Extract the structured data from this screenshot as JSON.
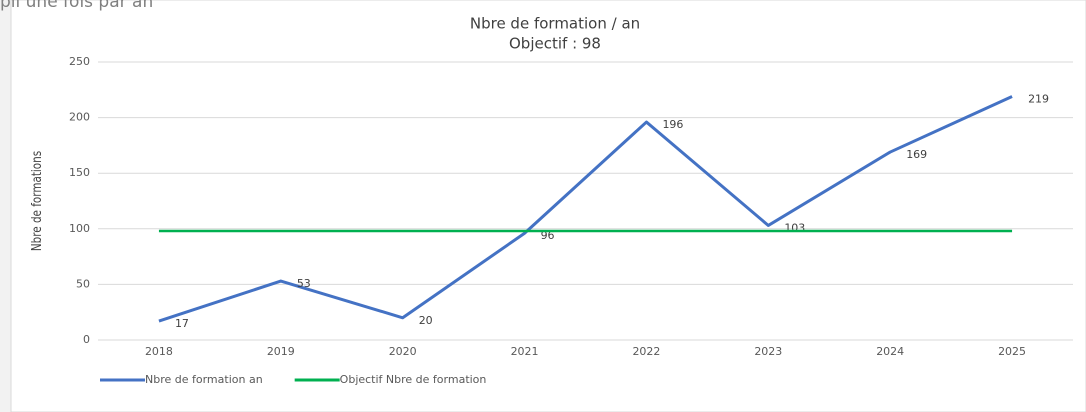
{
  "page_fragment": "pli une fois par an",
  "chart_data": {
    "type": "line",
    "title": "Nbre de formation / an",
    "subtitle": "Objectif : 98",
    "y_label": "Nbre de formations",
    "categories": [
      "2018",
      "2019",
      "2020",
      "2021",
      "2022",
      "2023",
      "2024",
      "2025"
    ],
    "series": [
      {
        "name": "Nbre de formation an",
        "color": "#4472c4",
        "values": [
          17,
          53,
          20,
          96,
          196,
          103,
          169,
          219
        ],
        "data_labels": true
      },
      {
        "name": "Objectif Nbre de formation",
        "color": "#00b050",
        "values": [
          98,
          98,
          98,
          98,
          98,
          98,
          98,
          98
        ],
        "data_labels": false
      }
    ],
    "ylim": [
      0,
      250
    ],
    "yticks": [
      0,
      50,
      100,
      150,
      200,
      250
    ],
    "grid": true,
    "legend": "bottom-left"
  }
}
